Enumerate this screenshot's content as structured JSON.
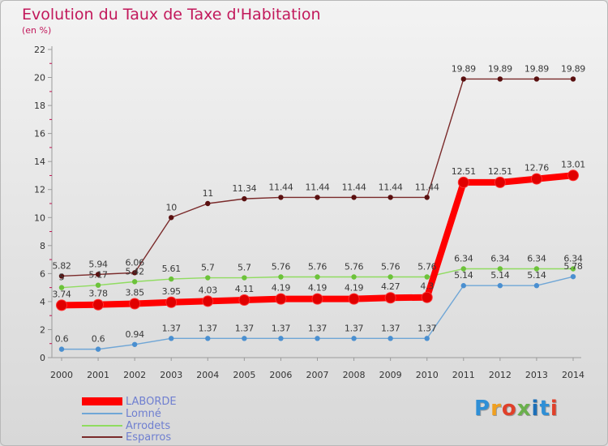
{
  "title": "Evolution du Taux de Taxe d'Habitation",
  "subtitle": "(en %)",
  "logo": {
    "text": "Proxiti",
    "colors": [
      "#2f8fd6",
      "#f0a020",
      "#e0402a",
      "#6ab04c",
      "#1d6fb8",
      "#2f8fd6",
      "#e0402a"
    ]
  },
  "chart_data": {
    "type": "line",
    "title": "Evolution du Taux de Taxe d'Habitation",
    "ylabel": "(en %)",
    "xlabel": "",
    "ylim": [
      0,
      22
    ],
    "yticks": [
      0,
      2,
      4,
      6,
      8,
      10,
      12,
      14,
      16,
      18,
      20,
      22
    ],
    "grid": false,
    "legend_position": "bottom-left",
    "categories": [
      "2000",
      "2001",
      "2002",
      "2003",
      "2004",
      "2005",
      "2006",
      "2007",
      "2008",
      "2009",
      "2010",
      "2011",
      "2012",
      "2013",
      "2014"
    ],
    "series": [
      {
        "name": "Esparros",
        "color": "#7a2a2a",
        "point_color": "#5a1010",
        "values": [
          5.82,
          5.94,
          6.06,
          10,
          11,
          11.34,
          11.44,
          11.44,
          11.44,
          11.44,
          11.44,
          19.89,
          19.89,
          19.89,
          19.89
        ],
        "labels": [
          "5.82",
          "5.94",
          "6.06",
          "10",
          "11",
          "11.34",
          "11.44",
          "11.44",
          "11.44",
          "11.44",
          "11.44",
          "19.89",
          "19.89",
          "19.89",
          "19.89"
        ]
      },
      {
        "name": "Arrodets",
        "color": "#90dc60",
        "point_color": "#6cc23a",
        "values": [
          5,
          5.17,
          5.42,
          5.61,
          5.7,
          5.7,
          5.76,
          5.76,
          5.76,
          5.76,
          5.76,
          6.34,
          6.34,
          6.34,
          6.34
        ],
        "labels": [
          "5",
          "5.17",
          "5.42",
          "5.61",
          "5.7",
          "5.7",
          "5.76",
          "5.76",
          "5.76",
          "5.76",
          "5.76",
          "6.34",
          "6.34",
          "6.34",
          "6.34"
        ]
      },
      {
        "name": "Lomné",
        "color": "#6fa6d6",
        "point_color": "#4a8fd0",
        "values": [
          0.6,
          0.6,
          0.94,
          1.37,
          1.37,
          1.37,
          1.37,
          1.37,
          1.37,
          1.37,
          1.37,
          5.14,
          5.14,
          5.14,
          5.78
        ],
        "labels": [
          "0.6",
          "0.6",
          "0.94",
          "1.37",
          "1.37",
          "1.37",
          "1.37",
          "1.37",
          "1.37",
          "1.37",
          "1.37",
          "5.14",
          "5.14",
          "5.14",
          "5.78"
        ]
      },
      {
        "name": "LABORDE",
        "color": "#ff0000",
        "point_color": "#e00000",
        "values": [
          3.74,
          3.78,
          3.85,
          3.95,
          4.03,
          4.11,
          4.19,
          4.19,
          4.19,
          4.27,
          4.3,
          12.51,
          12.51,
          12.76,
          13.01
        ],
        "labels": [
          "3.74",
          "3.78",
          "3.85",
          "3.95",
          "4.03",
          "4.11",
          "4.19",
          "4.19",
          "4.19",
          "4.27",
          "4.3",
          "12.51",
          "12.51",
          "12.76",
          "13.01"
        ]
      }
    ],
    "legend": [
      "LABORDE",
      "Lomné",
      "Arrodets",
      "Esparros"
    ]
  }
}
